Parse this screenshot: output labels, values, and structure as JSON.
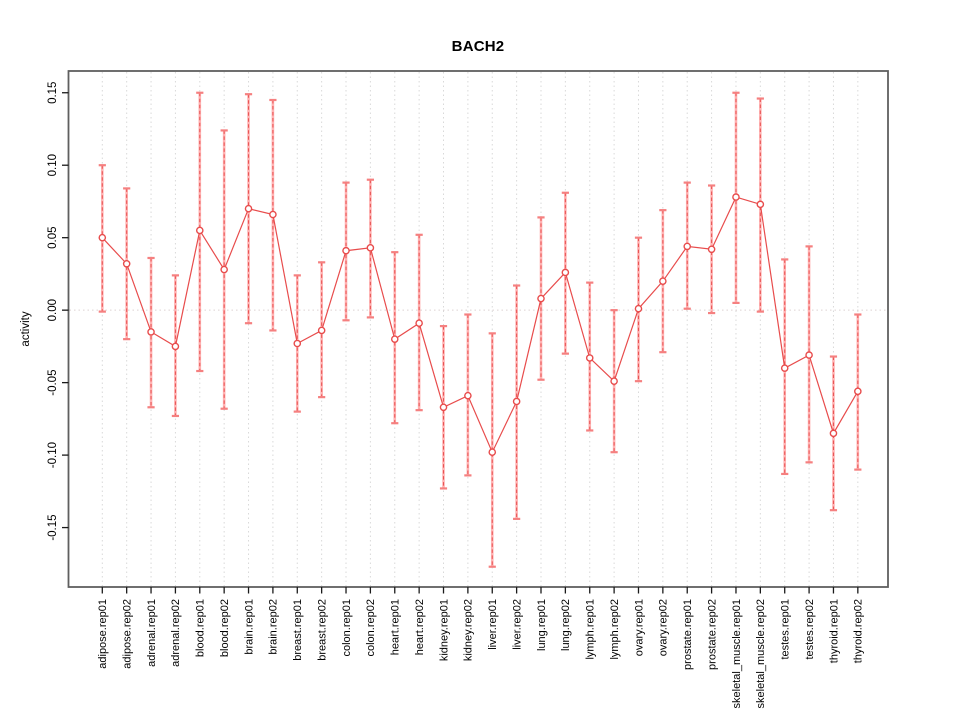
{
  "window": {
    "background": "#ffffff"
  },
  "chart_data": {
    "type": "line",
    "subtype": "points-with-error-bars",
    "title": "BACH2",
    "xlabel": "",
    "ylabel": "activity",
    "legend": "none",
    "grid": "vertical dotted gridline per category, dotted horizontal line at y=0",
    "ylim": [
      -0.191,
      0.165
    ],
    "yticks": [
      -0.15,
      -0.1,
      -0.05,
      0,
      0.05,
      0.1,
      0.15
    ],
    "ytick_labels": [
      "-0.15",
      "-0.10",
      "-0.05",
      "0.00",
      "0.05",
      "0.10",
      "0.15"
    ],
    "categories": [
      "adipose.rep01",
      "adipose.rep02",
      "adrenal.rep01",
      "adrenal.rep02",
      "blood.rep01",
      "blood.rep02",
      "brain.rep01",
      "brain.rep02",
      "breast.rep01",
      "breast.rep02",
      "colon.rep01",
      "colon.rep02",
      "heart.rep01",
      "heart.rep02",
      "kidney.rep01",
      "kidney.rep02",
      "liver.rep01",
      "liver.rep02",
      "lung.rep01",
      "lung.rep02",
      "lymph.rep01",
      "lymph.rep02",
      "ovary.rep01",
      "ovary.rep02",
      "prostate.rep01",
      "prostate.rep02",
      "skeletal_muscle.rep01",
      "skeletal_muscle.rep02",
      "testes.rep01",
      "testes.rep02",
      "thyroid.rep01",
      "thyroid.rep02"
    ],
    "series": [
      {
        "name": "activity",
        "values": [
          0.05,
          0.032,
          -0.015,
          -0.025,
          0.055,
          0.028,
          0.07,
          0.066,
          -0.023,
          -0.014,
          0.041,
          0.043,
          -0.02,
          -0.009,
          -0.067,
          -0.059,
          -0.098,
          -0.063,
          0.008,
          0.026,
          -0.033,
          -0.049,
          0.001,
          0.02,
          0.044,
          0.042,
          0.078,
          0.073,
          -0.04,
          -0.031,
          -0.085,
          -0.056
        ],
        "error_low": [
          -0.001,
          -0.02,
          -0.067,
          -0.073,
          -0.042,
          -0.068,
          -0.009,
          -0.014,
          -0.07,
          -0.06,
          -0.007,
          -0.005,
          -0.078,
          -0.069,
          -0.123,
          -0.114,
          -0.177,
          -0.144,
          -0.048,
          -0.03,
          -0.083,
          -0.098,
          -0.049,
          -0.029,
          0.001,
          -0.002,
          0.005,
          -0.001,
          -0.113,
          -0.105,
          -0.138,
          -0.11
        ],
        "error_high": [
          0.1,
          0.084,
          0.036,
          0.024,
          0.15,
          0.124,
          0.149,
          0.145,
          0.024,
          0.033,
          0.088,
          0.09,
          0.04,
          0.052,
          -0.011,
          -0.003,
          -0.016,
          0.017,
          0.064,
          0.081,
          0.019,
          0.0,
          0.05,
          0.069,
          0.088,
          0.086,
          0.15,
          0.146,
          0.035,
          0.044,
          -0.032,
          -0.003
        ]
      }
    ],
    "colors": {
      "point_line": "#e84c4c",
      "errorbar_fill": "#ffb2b2",
      "errorbar_dash": "#e85252",
      "errorbar_cap": "#f58080",
      "grid": "#d9d9d9",
      "zero_line": "#ddd2d2",
      "frame": "#5f5f5f",
      "tick": "#1a1a1a",
      "text": "#000000"
    }
  }
}
